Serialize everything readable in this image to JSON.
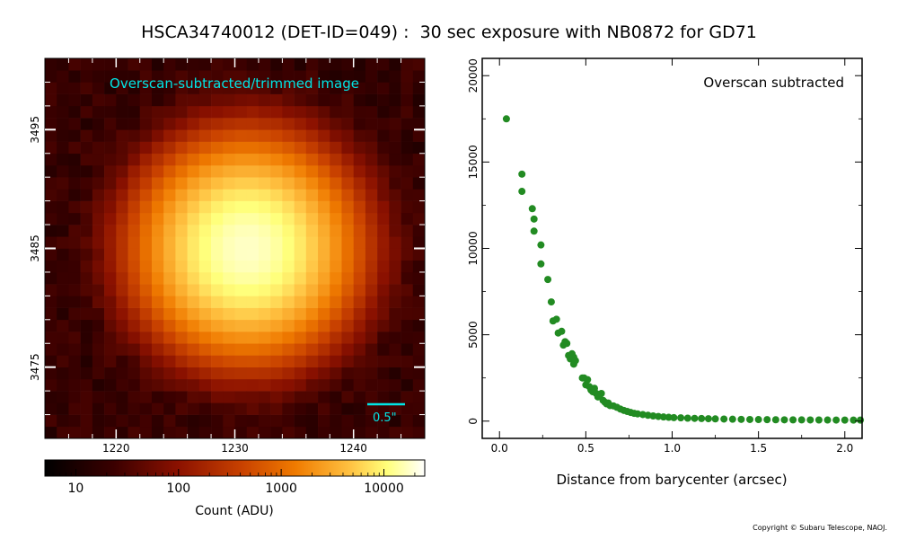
{
  "figure_title": "HSCA34740012 (DET-ID=049) :  30 sec exposure with NB0872 for GD71",
  "copyright": "Copyright © Subaru Telescope, NAOJ.",
  "chart_data": [
    {
      "type": "heatmap",
      "title": "Overscan-subtracted/trimmed image",
      "x_ticks": [
        1220,
        1230,
        1240
      ],
      "y_ticks": [
        3475,
        3485,
        3495
      ],
      "xlim": [
        1214,
        1246
      ],
      "ylim": [
        3469,
        3501
      ],
      "scalebar_label": "0.5\"",
      "scalebar_arcsec": 0.5,
      "peak": {
        "x": 1231,
        "y": 3485,
        "value": 17500
      },
      "background_value": 20,
      "colorbar": {
        "label": "Count (ADU)",
        "scale": "log",
        "range": [
          5,
          25000
        ],
        "tick_labels": [
          "10",
          "100",
          "1000",
          "10000"
        ],
        "tick_values": [
          10,
          100,
          1000,
          10000
        ]
      },
      "annotation_color": "#00e5e5"
    },
    {
      "type": "scatter",
      "title": "Overscan subtracted",
      "xlabel": "Distance from barycenter (arcsec)",
      "ylabel": "",
      "xlim": [
        -0.1,
        2.1
      ],
      "ylim": [
        -1000,
        21000
      ],
      "x_ticks": [
        0.0,
        0.5,
        1.0,
        1.5,
        2.0
      ],
      "x_tick_labels": [
        "0.0",
        "0.5",
        "1.0",
        "1.5",
        "2.0"
      ],
      "y_ticks": [
        0,
        5000,
        10000,
        15000,
        20000
      ],
      "y_tick_labels": [
        "0",
        "5000",
        "10000",
        "15000",
        "20000"
      ],
      "color": "#228b22",
      "x": [
        0.04,
        0.13,
        0.13,
        0.19,
        0.2,
        0.2,
        0.24,
        0.24,
        0.28,
        0.3,
        0.31,
        0.33,
        0.34,
        0.36,
        0.37,
        0.38,
        0.39,
        0.4,
        0.41,
        0.42,
        0.43,
        0.43,
        0.44,
        0.48,
        0.49,
        0.5,
        0.51,
        0.52,
        0.53,
        0.54,
        0.55,
        0.56,
        0.57,
        0.58,
        0.59,
        0.6,
        0.61,
        0.62,
        0.63,
        0.64,
        0.66,
        0.68,
        0.7,
        0.72,
        0.74,
        0.76,
        0.78,
        0.8,
        0.83,
        0.86,
        0.89,
        0.92,
        0.95,
        0.98,
        1.01,
        1.05,
        1.09,
        1.13,
        1.17,
        1.21,
        1.25,
        1.3,
        1.35,
        1.4,
        1.45,
        1.5,
        1.55,
        1.6,
        1.65,
        1.7,
        1.75,
        1.8,
        1.85,
        1.9,
        1.95,
        2.0,
        2.05,
        2.09
      ],
      "y": [
        17500,
        14300,
        13300,
        12300,
        11700,
        11000,
        10200,
        9100,
        8200,
        6900,
        5800,
        5900,
        5100,
        5200,
        4400,
        4600,
        4500,
        3800,
        3600,
        3900,
        3700,
        3300,
        3500,
        2500,
        2500,
        2100,
        2400,
        2000,
        1800,
        1700,
        1900,
        1600,
        1400,
        1500,
        1600,
        1200,
        1100,
        1000,
        1050,
        900,
        880,
        800,
        700,
        620,
        560,
        500,
        450,
        420,
        380,
        340,
        300,
        270,
        240,
        220,
        200,
        190,
        170,
        160,
        150,
        140,
        130,
        120,
        110,
        100,
        95,
        90,
        85,
        80,
        75,
        72,
        70,
        68,
        66,
        64,
        62,
        60,
        60,
        60
      ]
    }
  ]
}
